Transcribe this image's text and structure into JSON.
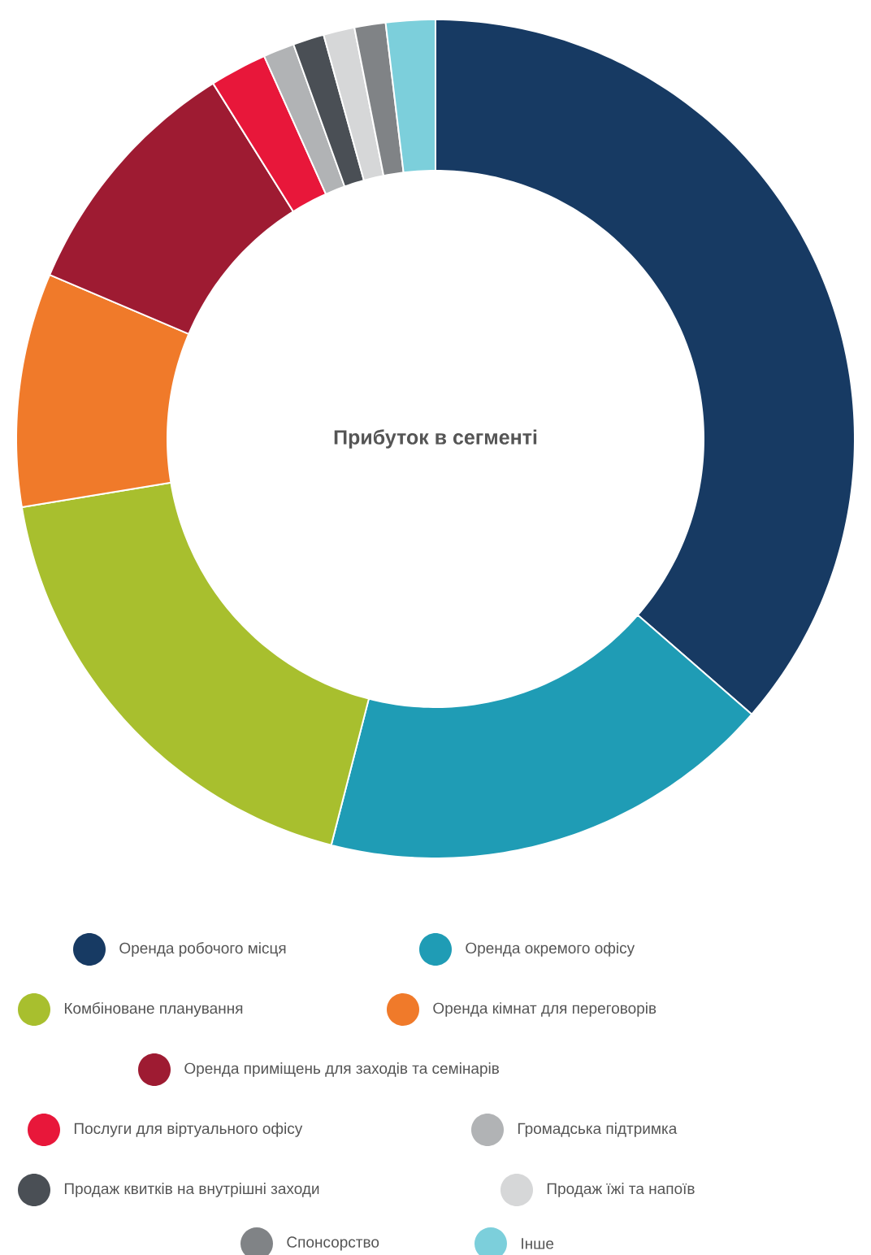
{
  "chart_data": {
    "type": "donut",
    "title": "Прибуток в сегменті",
    "legend": "bottom",
    "categories": [
      "Оренда робочого місця",
      "Оренда окремого офісу",
      "Комбіноване планування",
      "Оренда кімнат для переговорів",
      "Оренда приміщень для заходів та семінарів",
      "Послуги для віртуального офісу",
      "Громадська підтримка",
      "Продаж квитків на внутрішні заходи",
      "Продаж їжі та напоїв",
      "Спонсорство",
      "Інше"
    ],
    "values": [
      36.4,
      17.6,
      18.4,
      9.0,
      9.7,
      2.2,
      1.2,
      1.2,
      1.2,
      1.2,
      1.9
    ],
    "colors": [
      "#173a63",
      "#1f9cb5",
      "#a8bf2e",
      "#f07a2a",
      "#9e1b32",
      "#e8173a",
      "#b1b3b5",
      "#4a4f55",
      "#d6d7d8",
      "#808386",
      "#7ccfdb"
    ]
  }
}
